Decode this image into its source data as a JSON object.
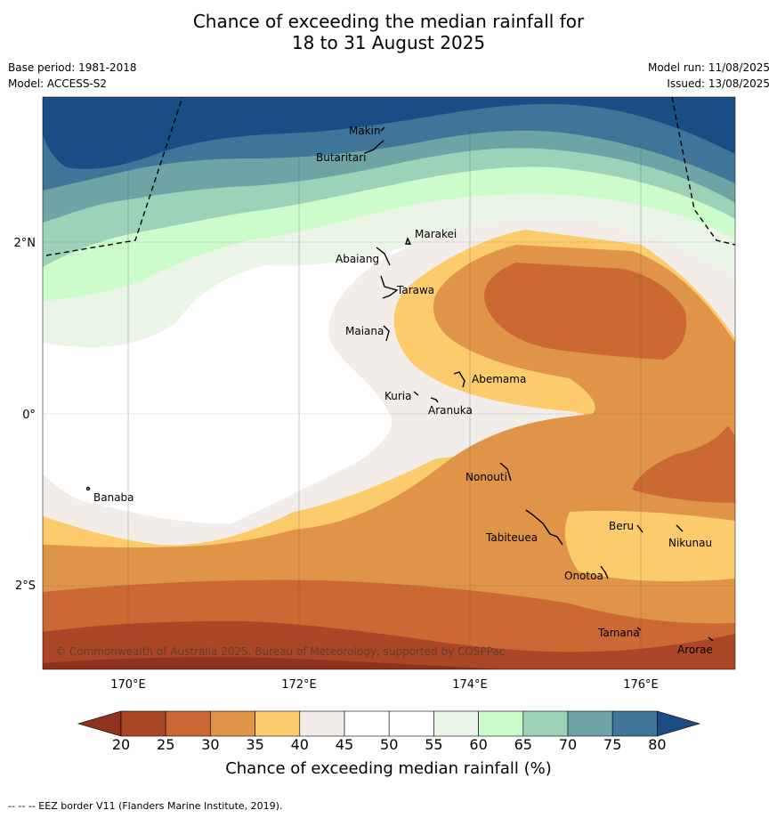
{
  "title": {
    "line1": "Chance of exceeding the median rainfall for",
    "line2": "18 to 31 August 2025"
  },
  "meta": {
    "base_period": "Base period: 1981-2018",
    "model": "Model: ACCESS-S2",
    "model_run": "Model run: 11/08/2025",
    "issued": "Issued: 13/08/2025"
  },
  "axes": {
    "lat_ticks": [
      "2°N",
      "0°",
      "2°S"
    ],
    "lon_ticks": [
      "170°E",
      "172°E",
      "174°E",
      "176°E"
    ]
  },
  "places": [
    "Makin",
    "Butaritari",
    "Marakei",
    "Abaiang",
    "Tarawa",
    "Maiana",
    "Abemama",
    "Kuria",
    "Aranuka",
    "Banaba",
    "Nonouti",
    "Tabiteuea",
    "Beru",
    "Nikunau",
    "Onotoa",
    "Tamana",
    "Arorae"
  ],
  "copyright": "© Commonwealth of Australia 2025, Bureau of Meteorology, supported by COSPPac",
  "colorbar": {
    "ticks": [
      "20",
      "25",
      "30",
      "35",
      "40",
      "45",
      "50",
      "55",
      "60",
      "65",
      "70",
      "75",
      "80"
    ],
    "colors": [
      "#ab4727",
      "#cc6834",
      "#e09448",
      "#fccb6c",
      "#f2ede8",
      "#ffffff",
      "#ffffff",
      "#eaf5e8",
      "#ccfccc",
      "#9dd2b8",
      "#6ea4a5",
      "#3e7599"
    ],
    "low_color": "#8f3220",
    "high_color": "#1a4d86",
    "title": "Chance of exceeding median rainfall (%)"
  },
  "footnote": "-- -- -- EEZ border V11 (Flanders Marine Institute, 2019)."
}
